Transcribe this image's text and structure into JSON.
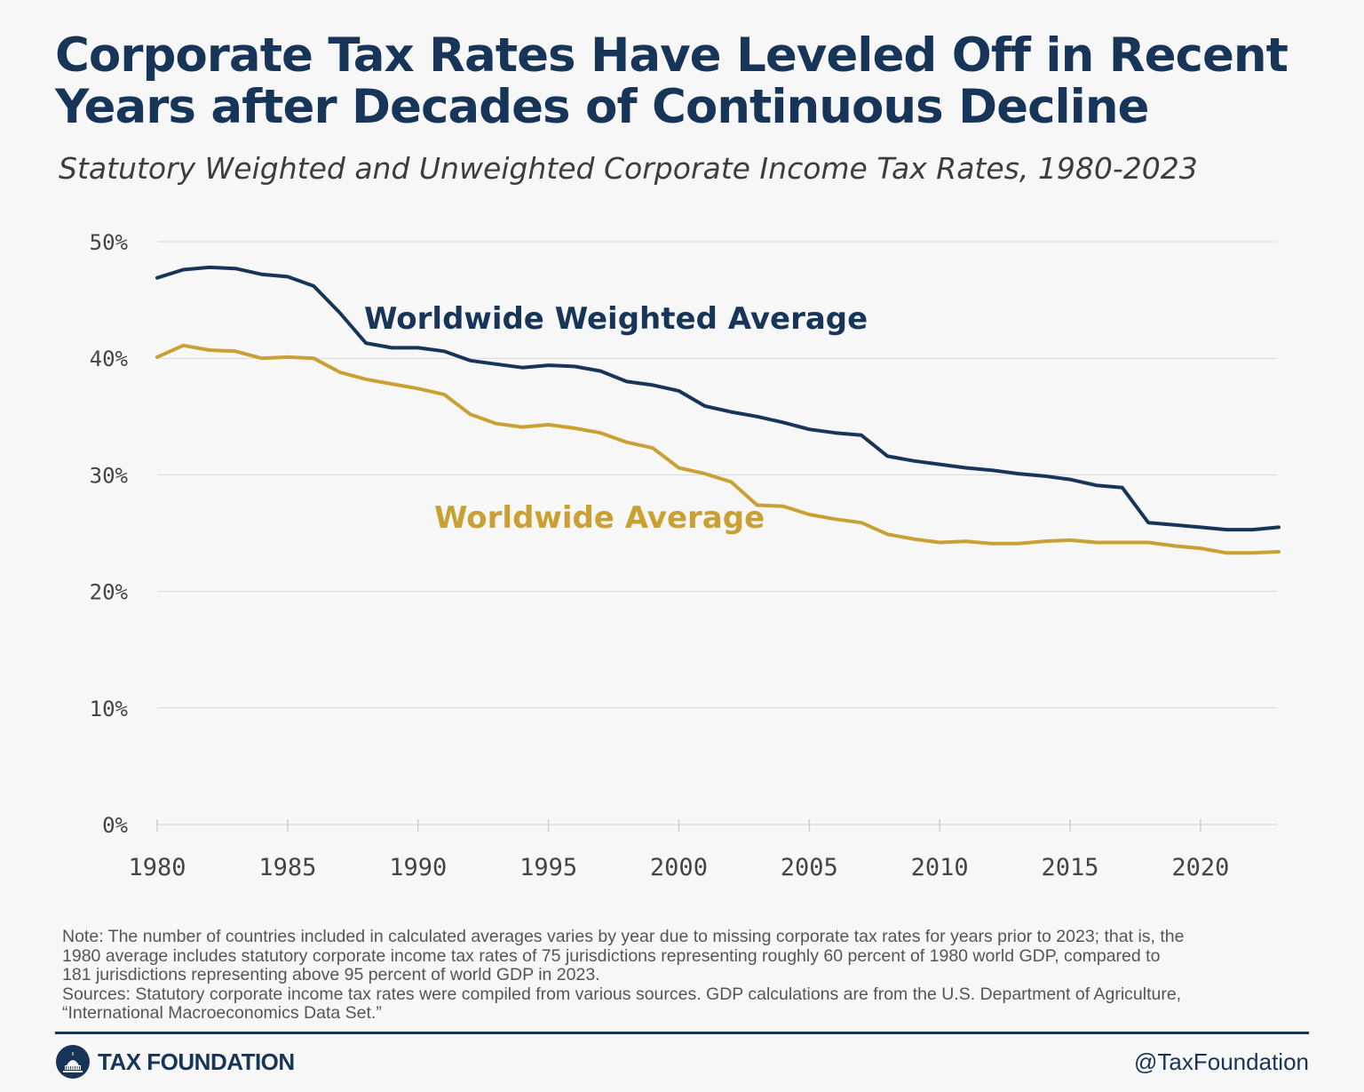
{
  "title_lines": [
    "Corporate Tax Rates Have Leveled Off in Recent",
    "Years after Decades of Continuous Decline"
  ],
  "subtitle": "Statutory Weighted and Unweighted Corporate Income Tax Rates, 1980-2023",
  "chart_data": {
    "type": "line",
    "title": "Corporate Tax Rates Have Leveled Off in Recent Years after Decades of Continuous Decline",
    "subtitle": "Statutory Weighted and Unweighted Corporate Income Tax Rates, 1980-2023",
    "xlabel": "",
    "ylabel": "",
    "xlim": [
      1980,
      2023
    ],
    "ylim": [
      0,
      50
    ],
    "y_ticks": [
      0,
      10,
      20,
      30,
      40,
      50
    ],
    "y_tick_labels": [
      "0%",
      "10%",
      "20%",
      "30%",
      "40%",
      "50%"
    ],
    "x_ticks": [
      1980,
      1985,
      1990,
      1995,
      2000,
      2005,
      2010,
      2015,
      2020
    ],
    "x_tick_labels": [
      "1980",
      "1985",
      "1990",
      "1995",
      "2000",
      "2005",
      "2010",
      "2015",
      "2020"
    ],
    "grid": true,
    "x": [
      1980,
      1981,
      1982,
      1983,
      1984,
      1985,
      1986,
      1987,
      1988,
      1989,
      1990,
      1991,
      1992,
      1993,
      1994,
      1995,
      1996,
      1997,
      1998,
      1999,
      2000,
      2001,
      2002,
      2003,
      2004,
      2005,
      2006,
      2007,
      2008,
      2009,
      2010,
      2011,
      2012,
      2013,
      2014,
      2015,
      2016,
      2017,
      2018,
      2019,
      2020,
      2021,
      2022,
      2023
    ],
    "series": [
      {
        "name": "Worldwide Weighted Average",
        "color": "#173559",
        "values": [
          46.9,
          47.6,
          47.8,
          47.7,
          47.2,
          47.0,
          46.2,
          43.9,
          41.3,
          40.9,
          40.9,
          40.6,
          39.8,
          39.5,
          39.2,
          39.4,
          39.3,
          38.9,
          38.0,
          37.7,
          37.2,
          35.9,
          35.4,
          35.0,
          34.5,
          33.9,
          33.6,
          33.4,
          31.6,
          31.2,
          30.9,
          30.6,
          30.4,
          30.1,
          29.9,
          29.6,
          29.1,
          28.9,
          25.9,
          25.7,
          25.5,
          25.3,
          25.3,
          25.5
        ]
      },
      {
        "name": "Worldwide Average",
        "color": "#c9a032",
        "values": [
          40.1,
          41.1,
          40.7,
          40.6,
          40.0,
          40.1,
          40.0,
          38.8,
          38.2,
          37.8,
          37.4,
          36.9,
          35.2,
          34.4,
          34.1,
          34.3,
          34.0,
          33.6,
          32.8,
          32.3,
          30.6,
          30.1,
          29.4,
          27.4,
          27.3,
          26.6,
          26.2,
          25.9,
          24.9,
          24.5,
          24.2,
          24.3,
          24.1,
          24.1,
          24.3,
          24.4,
          24.2,
          24.2,
          24.2,
          23.9,
          23.7,
          23.3,
          23.3,
          23.4
        ]
      }
    ]
  },
  "series_labels": {
    "weighted": "Worldwide Weighted Average",
    "unweighted": "Worldwide Average"
  },
  "note_lines": [
    "Note: The number of countries included in calculated averages varies by year due to missing corporate tax rates for years prior to 2023; that is, the",
    "1980 average includes statutory corporate income tax rates of 75 jurisdictions representing roughly 60 percent of 1980 world GDP, compared to",
    "181 jurisdictions representing above 95 percent of world GDP in 2023.",
    "Sources: Statutory corporate income tax rates were compiled from various sources. GDP calculations are from the U.S. Department of Agriculture,",
    "“International Macroeconomics Data Set.”"
  ],
  "footer": {
    "logo_text": "TAX FOUNDATION",
    "handle": "@TaxFoundation"
  },
  "colors": {
    "navy": "#173559",
    "gold": "#c9a032",
    "grid": "#d9d9d9"
  }
}
